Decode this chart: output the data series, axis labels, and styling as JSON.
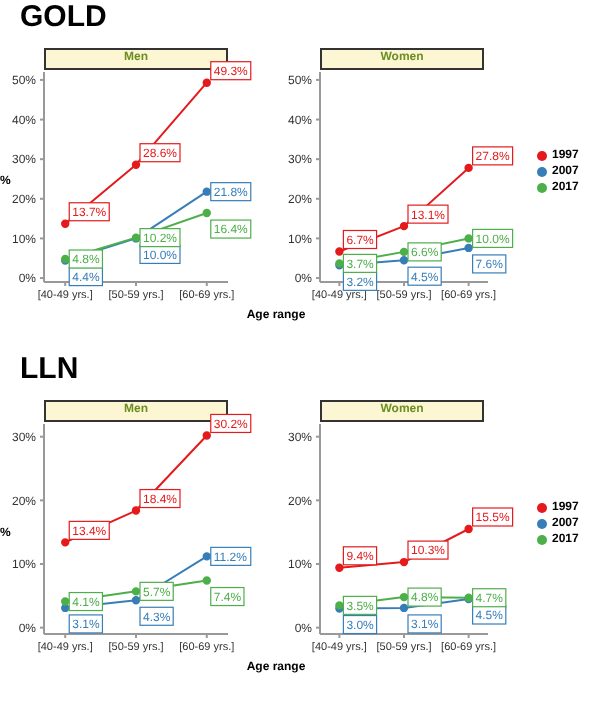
{
  "chart_data": [
    {
      "type": "line",
      "title": "GOLD",
      "subtitle": "Men",
      "ylabel": "%",
      "xlabel": "Age range",
      "categories": [
        "[40-49 yrs.]",
        "[50-59 yrs.]",
        "[60-69 yrs.]"
      ],
      "ylim": [
        -1,
        52
      ],
      "yticks": [
        {
          "value": 0,
          "label": "0%"
        },
        {
          "value": 10,
          "label": "10%"
        },
        {
          "value": 20,
          "label": "20%"
        },
        {
          "value": 30,
          "label": "30%"
        },
        {
          "value": 40,
          "label": "40%"
        },
        {
          "value": 50,
          "label": "50%"
        }
      ],
      "marker": "circle",
      "grid": false,
      "legend": false,
      "series": [
        {
          "color": "#e41a1c",
          "values": [
            13.7,
            28.6,
            49.3
          ],
          "value_labels": [
            "13.7%",
            "28.6%",
            "49.3%"
          ]
        },
        {
          "color": "#377eb8",
          "values": [
            4.4,
            10.0,
            21.8
          ],
          "value_labels": [
            "4.4%",
            "10.0%",
            "21.8%"
          ]
        },
        {
          "color": "#4daf4a",
          "values": [
            4.8,
            10.2,
            16.4
          ],
          "value_labels": [
            "4.8%",
            "10.2%",
            "16.4%"
          ]
        }
      ]
    },
    {
      "type": "line",
      "subtitle": "Women",
      "categories": [
        "[40-49 yrs.]",
        "[50-59 yrs.]",
        "[60-69 yrs.]"
      ],
      "ylim": [
        -1,
        52
      ],
      "yticks": [
        {
          "value": 0,
          "label": "0%"
        },
        {
          "value": 10,
          "label": "10%"
        },
        {
          "value": 20,
          "label": "20%"
        },
        {
          "value": 30,
          "label": "30%"
        },
        {
          "value": 40,
          "label": "40%"
        },
        {
          "value": 50,
          "label": "50%"
        }
      ],
      "marker": "circle",
      "grid": false,
      "legend": "right",
      "series": [
        {
          "name": "1997",
          "color": "#e41a1c",
          "values": [
            6.7,
            13.1,
            27.8
          ],
          "value_labels": [
            "6.7%",
            "13.1%",
            "27.8%"
          ]
        },
        {
          "name": "2007",
          "color": "#377eb8",
          "values": [
            3.2,
            4.5,
            7.6
          ],
          "value_labels": [
            "3.2%",
            "4.5%",
            "7.6%"
          ]
        },
        {
          "name": "2017",
          "color": "#4daf4a",
          "values": [
            3.7,
            6.6,
            10.0
          ],
          "value_labels": [
            "3.7%",
            "6.6%",
            "10.0%"
          ]
        }
      ]
    },
    {
      "type": "line",
      "title": "LLN",
      "subtitle": "Men",
      "ylabel": "%",
      "xlabel": "Age range",
      "categories": [
        "[40-49 yrs.]",
        "[50-59 yrs.]",
        "[60-69 yrs.]"
      ],
      "ylim": [
        -1,
        32
      ],
      "yticks": [
        {
          "value": 0,
          "label": "0%"
        },
        {
          "value": 10,
          "label": "10%"
        },
        {
          "value": 20,
          "label": "20%"
        },
        {
          "value": 30,
          "label": "30%"
        }
      ],
      "marker": "circle",
      "grid": false,
      "legend": false,
      "series": [
        {
          "color": "#e41a1c",
          "values": [
            13.4,
            18.4,
            30.2
          ],
          "value_labels": [
            "13.4%",
            "18.4%",
            "30.2%"
          ]
        },
        {
          "color": "#377eb8",
          "values": [
            3.1,
            4.3,
            11.2
          ],
          "value_labels": [
            "3.1%",
            "4.3%",
            "11.2%"
          ]
        },
        {
          "color": "#4daf4a",
          "values": [
            4.1,
            5.7,
            7.4
          ],
          "value_labels": [
            "4.1%",
            "5.7%",
            "7.4%"
          ]
        }
      ]
    },
    {
      "type": "line",
      "subtitle": "Women",
      "categories": [
        "[40-49 yrs.]",
        "[50-59 yrs.]",
        "[60-69 yrs.]"
      ],
      "ylim": [
        -1,
        32
      ],
      "yticks": [
        {
          "value": 0,
          "label": "0%"
        },
        {
          "value": 10,
          "label": "10%"
        },
        {
          "value": 20,
          "label": "20%"
        },
        {
          "value": 30,
          "label": "30%"
        }
      ],
      "marker": "circle",
      "grid": false,
      "legend": "right",
      "series": [
        {
          "name": "1997",
          "color": "#e41a1c",
          "values": [
            9.4,
            10.3,
            15.5
          ],
          "value_labels": [
            "9.4%",
            "10.3%",
            "15.5%"
          ]
        },
        {
          "name": "2007",
          "color": "#377eb8",
          "values": [
            3.0,
            3.1,
            4.5
          ],
          "value_labels": [
            "3.0%",
            "3.1%",
            "4.5%"
          ]
        },
        {
          "name": "2017",
          "color": "#4daf4a",
          "values": [
            3.5,
            4.8,
            4.7
          ],
          "value_labels": [
            "3.5%",
            "4.8%",
            "4.7%"
          ]
        }
      ]
    }
  ]
}
